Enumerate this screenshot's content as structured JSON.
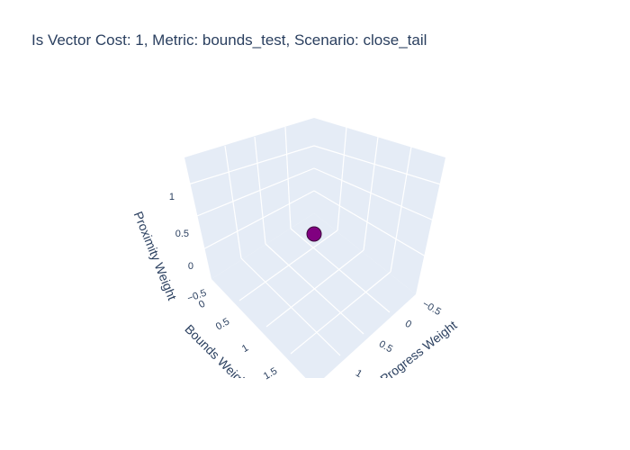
{
  "chart_data": {
    "type": "scatter3d",
    "title": "Is Vector Cost: 1, Metric: bounds_test, Scenario: close_tail",
    "x_axis": {
      "label": "Progress Weight",
      "ticks": [
        "−0.5",
        "0",
        "0.5",
        "1"
      ]
    },
    "y_axis": {
      "label": "Bounds Weight",
      "ticks": [
        "0",
        "0.5",
        "1",
        "1.5"
      ]
    },
    "z_axis": {
      "label": "Proximity Weight",
      "ticks": [
        "−0.5",
        "0",
        "0.5",
        "1"
      ]
    },
    "points": [
      {
        "x": 0,
        "y": 0,
        "z": 0,
        "color": "#800080"
      }
    ],
    "colors": {
      "pane": "#e5ecf6",
      "grid": "#ffffff",
      "text": "#2a3f5f",
      "marker": "#800080"
    }
  }
}
